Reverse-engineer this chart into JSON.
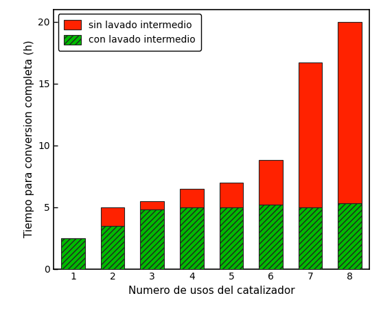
{
  "categories": [
    1,
    2,
    3,
    4,
    5,
    6,
    7,
    8
  ],
  "green_values": [
    2.5,
    3.5,
    4.8,
    5.0,
    5.0,
    5.2,
    5.0,
    5.3
  ],
  "total_values": [
    2.5,
    5.0,
    5.5,
    6.5,
    7.0,
    8.8,
    16.7,
    20.0
  ],
  "green_color": "#00bb00",
  "red_color": "#ff2200",
  "hatch_pattern": "////",
  "xlabel": "Numero de usos del catalizador",
  "ylabel": "Tiempo para conversion completa (h)",
  "ylim": [
    0,
    21
  ],
  "yticks": [
    0,
    5,
    10,
    15,
    20
  ],
  "legend_labels": [
    "sin lavado intermedio",
    "con lavado intermedio"
  ],
  "bar_width": 0.6,
  "edge_color": "#222222",
  "figsize": [
    5.55,
    4.5
  ],
  "dpi": 100
}
